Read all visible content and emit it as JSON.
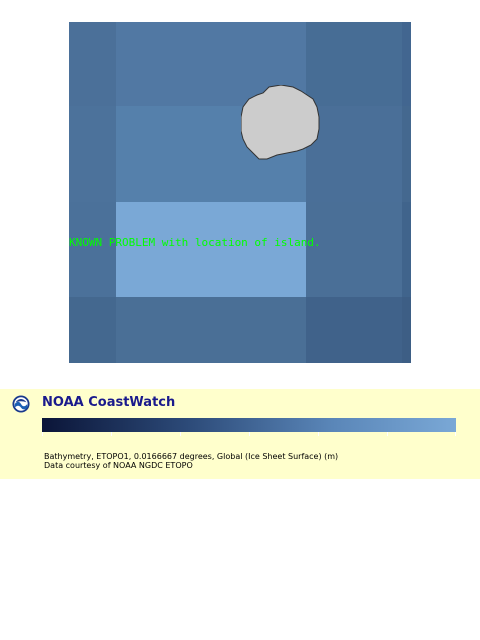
{
  "map": {
    "annotation": "KNOWN PROBLEM with location of island.",
    "cell_colors": {
      "dark": "#4a6f96",
      "mid": "#5580ab",
      "light": "#7aa8d6",
      "deep": "#40628a",
      "edge": "#3d5e85"
    },
    "land_color": "#cccccc"
  },
  "legend": {
    "brand": "NOAA CoastWatch",
    "logo_icon": "noaa-logo-icon",
    "colorbar_colors": [
      "#0b1538",
      "#2c4a78",
      "#5a86b8",
      "#7aa8d6"
    ],
    "credit_line_1": "Bathymetry, ETOPO1, 0.0166667 degrees, Global (Ice Sheet Surface) (m)",
    "credit_line_2": "Data courtesy of NOAA NGDC ETOPO"
  }
}
